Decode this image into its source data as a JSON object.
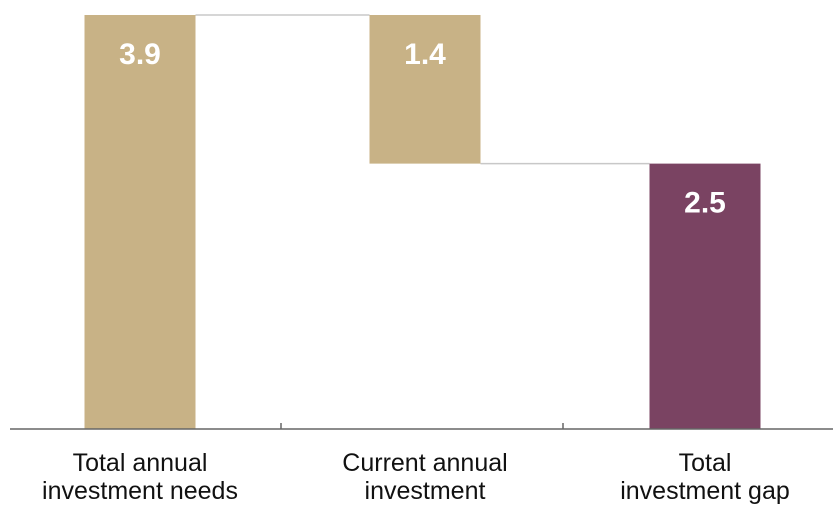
{
  "chart_data": {
    "type": "bar",
    "subtype": "waterfall",
    "categories": [
      [
        "Total annual",
        "investment needs"
      ],
      [
        "Current annual",
        "investment"
      ],
      [
        "Total",
        "investment gap"
      ]
    ],
    "bars": [
      {
        "category_index": 0,
        "start": 0,
        "end": 3.9,
        "label": "3.9",
        "color": "#C8B286"
      },
      {
        "category_index": 1,
        "start": 2.5,
        "end": 3.9,
        "label": "1.4",
        "color": "#C8B286"
      },
      {
        "category_index": 2,
        "start": 0,
        "end": 2.5,
        "label": "2.5",
        "color": "#7A4362"
      }
    ],
    "connectors": [
      {
        "from": 0,
        "to": 1,
        "level": 3.9
      },
      {
        "from": 1,
        "to": 2,
        "level": 2.5
      }
    ],
    "ylim": [
      0,
      3.9
    ],
    "grid": false,
    "legend": "none",
    "colors": {
      "gain": "#C8B286",
      "total": "#7A4362",
      "axis": "#666666",
      "connector": "#C8C8C8"
    }
  }
}
